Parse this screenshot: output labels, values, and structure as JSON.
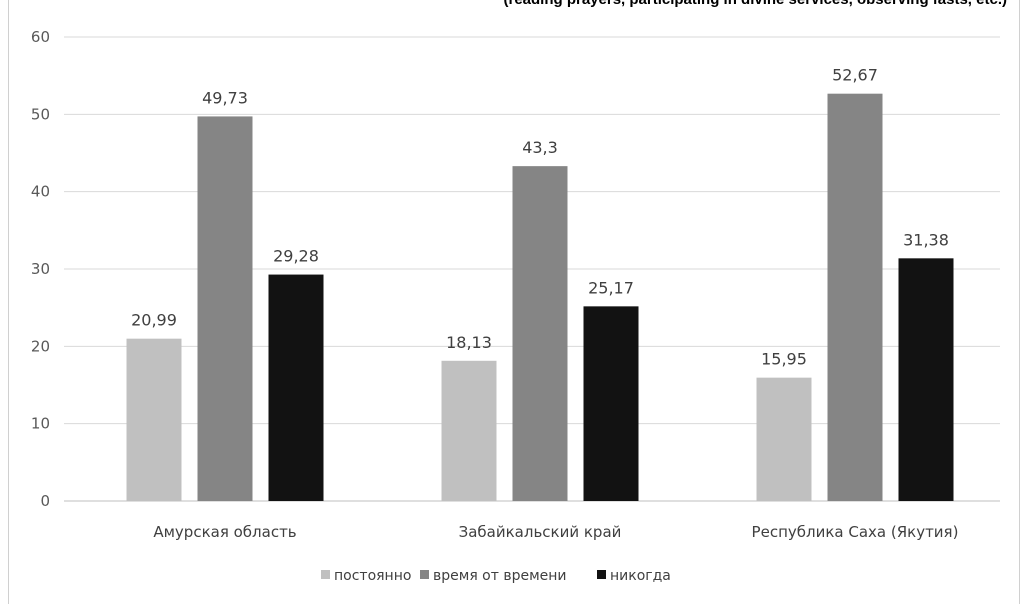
{
  "caption": "(reading prayers, participating in divine services, observing fasts, etc.) *",
  "chart_data": {
    "type": "bar",
    "categories": [
      "Амурская область",
      "Забайкальский край",
      "Республика Саха (Якутия)"
    ],
    "series": [
      {
        "name": "постоянно",
        "values": [
          20.99,
          18.13,
          15.95
        ],
        "labels": [
          "20,99",
          "18,13",
          "15,95"
        ],
        "color": "#c0c0c0"
      },
      {
        "name": "время от времени",
        "values": [
          49.73,
          43.3,
          52.67
        ],
        "labels": [
          "49,73",
          "43,3",
          "52,67"
        ],
        "color": "#858585"
      },
      {
        "name": "никогда",
        "values": [
          29.28,
          25.17,
          31.38
        ],
        "labels": [
          "29,28",
          "25,17",
          "31,38"
        ],
        "color": "#121212"
      }
    ],
    "ylim": [
      0,
      60
    ],
    "yticks": [
      "0",
      "10",
      "20",
      "30",
      "40",
      "50",
      "60"
    ],
    "grid": true,
    "legend_position": "bottom"
  }
}
